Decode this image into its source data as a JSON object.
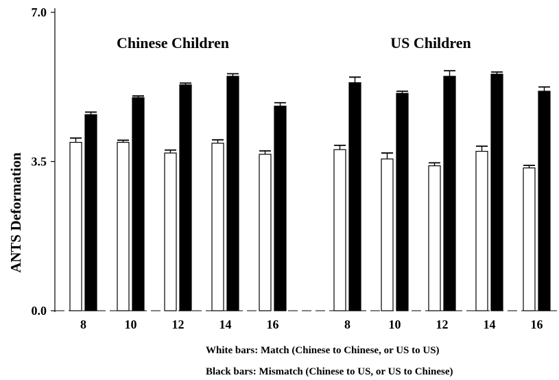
{
  "chart_data": {
    "type": "bar",
    "ylabel": "ANTS Deformation",
    "ylim": [
      0,
      7.0
    ],
    "yticks": [
      "0.0",
      "3.5",
      "7.0"
    ],
    "grid": false,
    "groups": [
      {
        "title": "Chinese Children",
        "categories": [
          "8",
          "10",
          "12",
          "14",
          "16"
        ],
        "series": [
          {
            "color": "#ffffff",
            "values": [
              3.95,
              3.95,
              3.7,
              3.93,
              3.67
            ],
            "errors": [
              0.1,
              0.05,
              0.07,
              0.08,
              0.08
            ]
          },
          {
            "color": "#000000",
            "values": [
              4.6,
              5.0,
              5.3,
              5.5,
              4.8
            ],
            "errors": [
              0.06,
              0.04,
              0.04,
              0.06,
              0.08
            ]
          }
        ]
      },
      {
        "title": "US Children",
        "categories": [
          "8",
          "10",
          "12",
          "14",
          "16"
        ],
        "series": [
          {
            "color": "#ffffff",
            "values": [
              3.78,
              3.56,
              3.4,
              3.74,
              3.35
            ],
            "errors": [
              0.1,
              0.14,
              0.07,
              0.12,
              0.06
            ]
          },
          {
            "color": "#000000",
            "values": [
              5.35,
              5.1,
              5.5,
              5.55,
              5.15
            ],
            "errors": [
              0.13,
              0.05,
              0.13,
              0.05,
              0.1
            ]
          }
        ]
      }
    ],
    "annotations": [
      "White bars: Match (Chinese to Chinese, or US to US)",
      "Black bars: Mismatch (Chinese to US, or US to Chinese)"
    ]
  }
}
